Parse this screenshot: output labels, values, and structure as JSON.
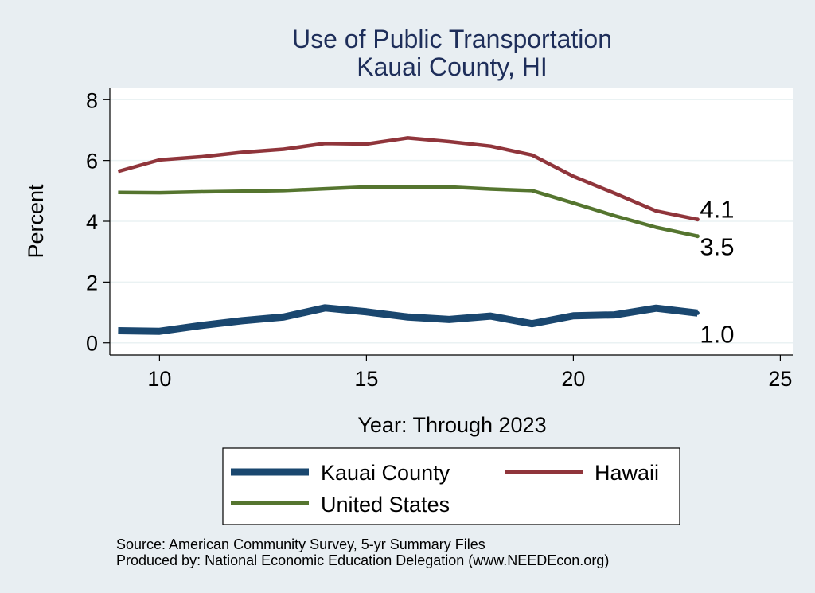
{
  "chart_data": {
    "type": "line",
    "title": "Use of Public Transportation",
    "subtitle": "Kauai County, HI",
    "xlabel": "Year: Through 2023",
    "ylabel": "Percent",
    "xlim": [
      8.8,
      25.3
    ],
    "ylim": [
      -0.4,
      8.4
    ],
    "xticks": [
      10,
      15,
      20,
      25
    ],
    "yticks": [
      0,
      2,
      4,
      6,
      8
    ],
    "x": [
      9,
      10,
      11,
      12,
      13,
      14,
      15,
      16,
      17,
      18,
      19,
      20,
      21,
      22,
      23
    ],
    "series": [
      {
        "name": "Kauai County",
        "color": "#1a476f",
        "width": 9,
        "values": [
          0.4,
          0.38,
          0.57,
          0.73,
          0.85,
          1.15,
          1.02,
          0.85,
          0.77,
          0.88,
          0.63,
          0.89,
          0.92,
          1.14,
          0.98
        ],
        "end_label": "1.0"
      },
      {
        "name": "Hawaii",
        "color": "#90353b",
        "width": 4.5,
        "values": [
          5.64,
          6.02,
          6.12,
          6.27,
          6.37,
          6.56,
          6.54,
          6.74,
          6.62,
          6.47,
          6.18,
          5.48,
          4.92,
          4.34,
          4.06
        ],
        "end_label": "4.1"
      },
      {
        "name": "United States",
        "color": "#55752f",
        "width": 4.5,
        "values": [
          4.95,
          4.94,
          4.97,
          4.99,
          5.01,
          5.07,
          5.13,
          5.13,
          5.13,
          5.06,
          5.01,
          4.6,
          4.18,
          3.8,
          3.51
        ],
        "end_label": "3.5"
      }
    ],
    "legend": [
      "Kauai County",
      "Hawaii",
      "United States"
    ],
    "legend_position": "bottom"
  },
  "source_line1": "Source: American Community Survey, 5-yr Summary Files",
  "source_line2": "Produced by: National Economic Education Delegation (www.NEEDEcon.org)"
}
